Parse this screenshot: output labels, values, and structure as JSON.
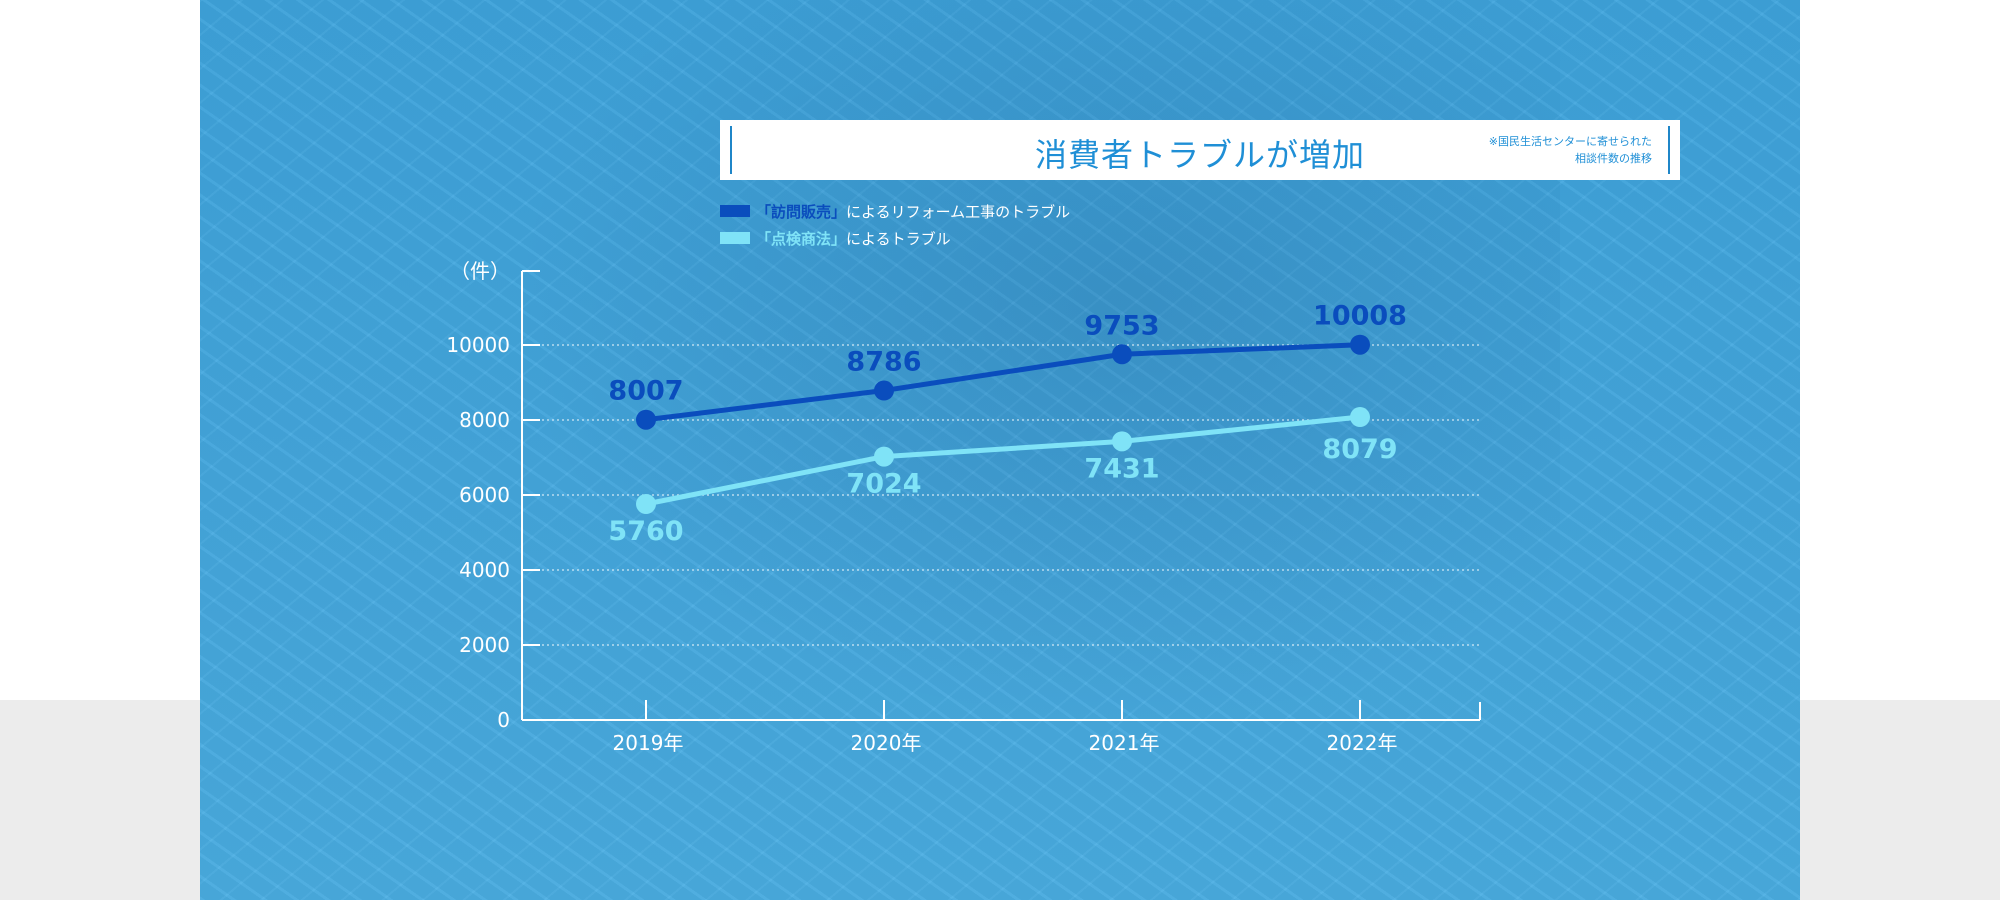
{
  "title": "消費者トラブルが増加",
  "note_line1": "※国民生活センターに寄せられた",
  "note_line2": "相談件数の推移",
  "legend": [
    {
      "quote_text": "「訪問販売」",
      "rest_text": "によるリフォーム工事のトラブル",
      "color": "#0a4dbd"
    },
    {
      "quote_text": "「点検商法」",
      "rest_text": "によるトラブル",
      "color": "#7fe3f7"
    }
  ],
  "colors": {
    "panel_bg": "#43a8e0",
    "series_dark": "#0a4dbd",
    "series_light": "#7fe3f7",
    "axis": "#ffffff"
  },
  "chart_data": {
    "type": "line",
    "ylabel": "（件）",
    "categories": [
      "2019年",
      "2020年",
      "2021年",
      "2022年"
    ],
    "ylim": [
      0,
      12000
    ],
    "yticks": [
      0,
      2000,
      4000,
      6000,
      8000,
      10000
    ],
    "grid": true,
    "series": [
      {
        "name": "「訪問販売」によるリフォーム工事のトラブル",
        "values": [
          8007,
          8786,
          9753,
          10008
        ],
        "color": "#0a4dbd",
        "label_position": "above"
      },
      {
        "name": "「点検商法」によるトラブル",
        "values": [
          5760,
          7024,
          7431,
          8079
        ],
        "color": "#7fe3f7",
        "label_position": "below"
      }
    ]
  }
}
